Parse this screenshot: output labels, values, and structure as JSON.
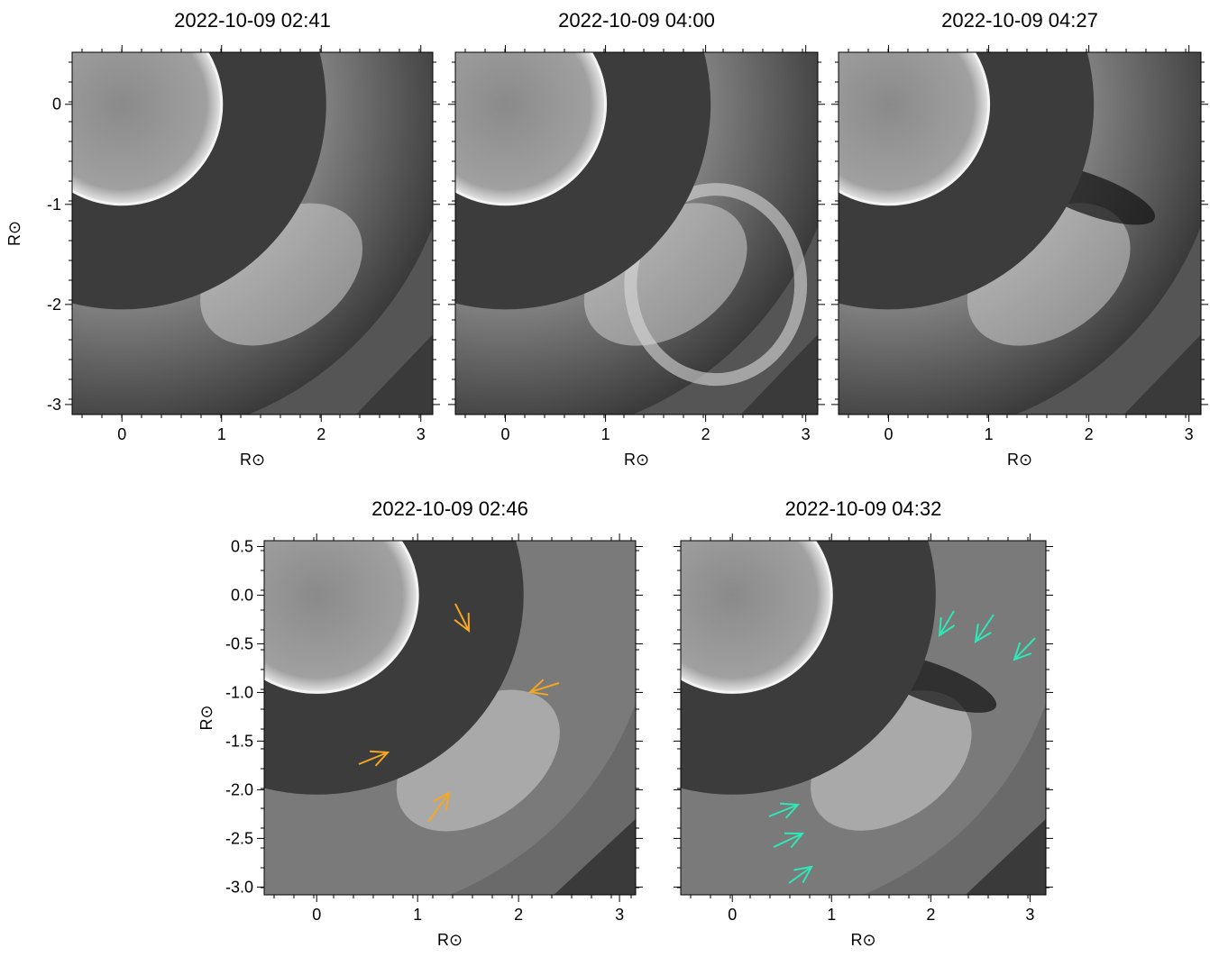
{
  "chart_data": [
    {
      "type": "image",
      "title": "2022-10-09 02:41",
      "xlabel": "R⊙",
      "ylabel": "R⊙",
      "xlim": [
        -0.5,
        3.12
      ],
      "ylim": [
        -3.1,
        0.52
      ],
      "xticks": [
        0,
        1,
        2,
        3
      ],
      "yticks": [
        -3,
        -2,
        -1,
        0
      ],
      "show_ytick_labels": true
    },
    {
      "type": "image",
      "title": "2022-10-09 04:00",
      "xlabel": "R⊙",
      "xlim": [
        -0.5,
        3.12
      ],
      "ylim": [
        -3.1,
        0.52
      ],
      "xticks": [
        0,
        1,
        2,
        3
      ],
      "yticks": [
        -3,
        -2,
        -1,
        0
      ],
      "show_ytick_labels": false
    },
    {
      "type": "image",
      "title": "2022-10-09 04:27",
      "xlabel": "R⊙",
      "xlim": [
        -0.5,
        3.12
      ],
      "ylim": [
        -3.1,
        0.52
      ],
      "xticks": [
        0,
        1,
        2,
        3
      ],
      "yticks": [
        -3,
        -2,
        -1,
        0
      ],
      "show_ytick_labels": false
    },
    {
      "type": "image",
      "title": "2022-10-09 02:46",
      "xlabel": "R⊙",
      "ylabel": "R⊙",
      "xlim": [
        -0.52,
        3.16
      ],
      "ylim": [
        -3.08,
        0.56
      ],
      "xticks": [
        0,
        1,
        2,
        3
      ],
      "yticks": [
        {
          "value": -3,
          "label": "-3.0"
        },
        -2.5,
        {
          "value": -2,
          "label": "-2.0"
        },
        -1.5,
        {
          "value": -1,
          "label": "-1.0"
        },
        -0.5,
        {
          "value": 0,
          "label": "0.0"
        },
        0.5
      ],
      "show_ytick_labels": true,
      "arrow_color": "#f5a623"
    },
    {
      "type": "image",
      "title": "2022-10-09 04:32",
      "xlabel": "R⊙",
      "xlim": [
        -0.52,
        3.16
      ],
      "ylim": [
        -3.08,
        0.56
      ],
      "xticks": [
        0,
        1,
        2,
        3
      ],
      "yticks": [
        {
          "value": -3,
          "label": "-3.0"
        },
        -2.5,
        {
          "value": -2,
          "label": "-2.0"
        },
        -1.5,
        {
          "value": -1,
          "label": "-1.0"
        },
        -0.5,
        {
          "value": 0,
          "label": "0.0"
        },
        0.5
      ],
      "show_ytick_labels": false,
      "arrow_color": "#2ee8b8"
    }
  ]
}
